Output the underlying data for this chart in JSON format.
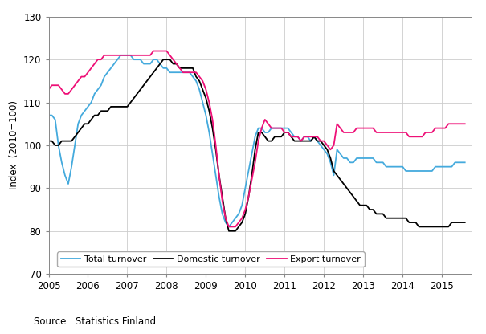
{
  "title": "",
  "ylabel": "Index  (2010=100)",
  "source_text": "Source:  Statistics Finland",
  "ylim": [
    70,
    130
  ],
  "yticks": [
    70,
    80,
    90,
    100,
    110,
    120,
    130
  ],
  "xlim_start": 2005.0,
  "xlim_end": 2015.75,
  "xtick_years": [
    2005,
    2006,
    2007,
    2008,
    2009,
    2010,
    2011,
    2012,
    2013,
    2014,
    2015
  ],
  "line_colors": {
    "total": "#44AADD",
    "domestic": "#000000",
    "export": "#EE1077"
  },
  "linewidth": 1.3,
  "legend_labels": [
    "Total turnover",
    "Domestic turnover",
    "Export turnover"
  ],
  "total_turnover": [
    107,
    107,
    106,
    100,
    96,
    93,
    91,
    95,
    100,
    105,
    107,
    108,
    109,
    110,
    112,
    113,
    114,
    116,
    117,
    118,
    119,
    120,
    121,
    121,
    121,
    121,
    120,
    120,
    120,
    119,
    119,
    119,
    120,
    120,
    119,
    118,
    118,
    117,
    117,
    117,
    117,
    117,
    117,
    117,
    116,
    115,
    113,
    110,
    107,
    103,
    98,
    93,
    88,
    84,
    82,
    81,
    82,
    83,
    84,
    86,
    90,
    94,
    98,
    102,
    104,
    104,
    103,
    103,
    104,
    104,
    104,
    104,
    104,
    104,
    103,
    102,
    102,
    101,
    102,
    102,
    101,
    102,
    101,
    100,
    99,
    98,
    96,
    93,
    99,
    98,
    97,
    97,
    96,
    96,
    97,
    97,
    97,
    97,
    97,
    97,
    96,
    96,
    96,
    95,
    95,
    95,
    95,
    95,
    95,
    94,
    94,
    94,
    94,
    94,
    94,
    94,
    94,
    94,
    95,
    95,
    95,
    95,
    95,
    95,
    96,
    96,
    96,
    96
  ],
  "domestic_turnover": [
    101,
    101,
    100,
    100,
    101,
    101,
    101,
    101,
    102,
    103,
    104,
    105,
    105,
    106,
    107,
    107,
    108,
    108,
    108,
    109,
    109,
    109,
    109,
    109,
    109,
    110,
    111,
    112,
    113,
    114,
    115,
    116,
    117,
    118,
    119,
    120,
    120,
    120,
    119,
    119,
    118,
    118,
    118,
    118,
    118,
    116,
    115,
    113,
    111,
    108,
    104,
    99,
    93,
    88,
    83,
    80,
    80,
    80,
    81,
    82,
    84,
    88,
    93,
    99,
    103,
    103,
    102,
    101,
    101,
    102,
    102,
    102,
    103,
    103,
    102,
    101,
    101,
    101,
    101,
    101,
    101,
    102,
    101,
    101,
    100,
    99,
    97,
    94,
    93,
    92,
    91,
    90,
    89,
    88,
    87,
    86,
    86,
    86,
    85,
    85,
    84,
    84,
    84,
    83,
    83,
    83,
    83,
    83,
    83,
    83,
    82,
    82,
    82,
    81,
    81,
    81,
    81,
    81,
    81,
    81,
    81,
    81,
    81,
    82,
    82,
    82,
    82,
    82
  ],
  "export_turnover": [
    113,
    114,
    114,
    114,
    113,
    112,
    112,
    113,
    114,
    115,
    116,
    116,
    117,
    118,
    119,
    120,
    120,
    121,
    121,
    121,
    121,
    121,
    121,
    121,
    121,
    121,
    121,
    121,
    121,
    121,
    121,
    121,
    122,
    122,
    122,
    122,
    122,
    121,
    120,
    119,
    118,
    117,
    117,
    117,
    117,
    117,
    116,
    115,
    113,
    110,
    106,
    100,
    93,
    87,
    83,
    81,
    81,
    81,
    82,
    83,
    85,
    88,
    92,
    96,
    101,
    104,
    106,
    105,
    104,
    104,
    104,
    104,
    103,
    103,
    102,
    102,
    102,
    101,
    102,
    102,
    102,
    102,
    102,
    101,
    101,
    100,
    99,
    100,
    105,
    104,
    103,
    103,
    103,
    103,
    104,
    104,
    104,
    104,
    104,
    104,
    103,
    103,
    103,
    103,
    103,
    103,
    103,
    103,
    103,
    103,
    102,
    102,
    102,
    102,
    102,
    103,
    103,
    103,
    104,
    104,
    104,
    104,
    105,
    105,
    105,
    105,
    105,
    105
  ]
}
